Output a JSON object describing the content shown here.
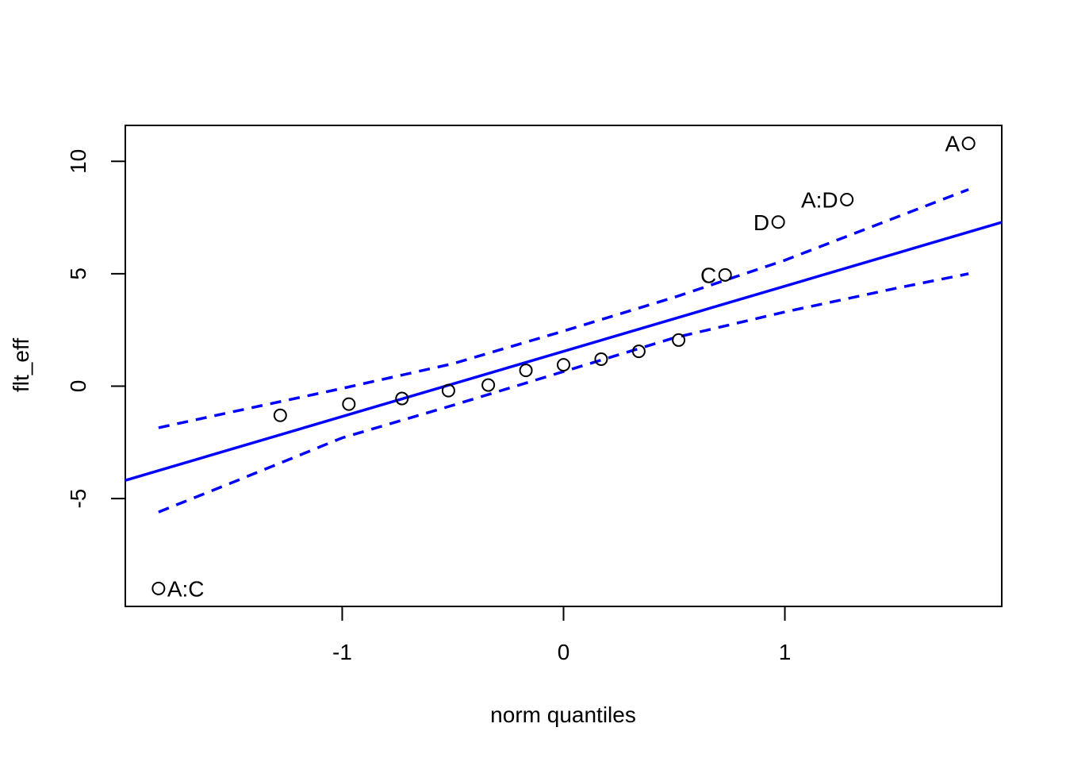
{
  "chart_data": {
    "type": "scatter",
    "title": "",
    "xlabel": "norm quantiles",
    "ylabel": "flt_eff",
    "xlim": [
      -1.98,
      1.98
    ],
    "ylim": [
      -9.8,
      11.6
    ],
    "x_ticks": [
      -1,
      0,
      1
    ],
    "x_tick_labels": [
      "-1",
      "0",
      "1"
    ],
    "y_ticks": [
      -5,
      0,
      5,
      10
    ],
    "y_tick_labels": [
      "-5",
      "0",
      "5",
      "10"
    ],
    "grid": false,
    "colors": {
      "points": "#000000",
      "reference": "#0000ff",
      "axes": "#000000"
    },
    "points": [
      {
        "x": -1.83,
        "y": -9.0,
        "label": "A:C"
      },
      {
        "x": -1.28,
        "y": -1.3,
        "label": ""
      },
      {
        "x": -0.97,
        "y": -0.8,
        "label": ""
      },
      {
        "x": -0.73,
        "y": -0.55,
        "label": ""
      },
      {
        "x": -0.52,
        "y": -0.2,
        "label": ""
      },
      {
        "x": -0.34,
        "y": 0.05,
        "label": ""
      },
      {
        "x": -0.17,
        "y": 0.7,
        "label": ""
      },
      {
        "x": 0.0,
        "y": 0.95,
        "label": ""
      },
      {
        "x": 0.17,
        "y": 1.2,
        "label": ""
      },
      {
        "x": 0.34,
        "y": 1.55,
        "label": ""
      },
      {
        "x": 0.52,
        "y": 2.05,
        "label": ""
      },
      {
        "x": 0.73,
        "y": 4.95,
        "label": "C"
      },
      {
        "x": 0.97,
        "y": 7.3,
        "label": "D"
      },
      {
        "x": 1.28,
        "y": 8.3,
        "label": "A:D"
      },
      {
        "x": 1.83,
        "y": 10.8,
        "label": "A"
      }
    ],
    "reference_line": {
      "intercept": 1.55,
      "slope": 2.9
    },
    "confidence_band": {
      "x": [
        -1.83,
        -1.5,
        -1.0,
        -0.5,
        0.0,
        0.5,
        1.0,
        1.5,
        1.83
      ],
      "upper": [
        -1.85,
        -1.15,
        -0.1,
        1.0,
        2.45,
        3.95,
        5.6,
        7.5,
        8.75
      ],
      "lower": [
        -5.6,
        -4.3,
        -2.3,
        -0.85,
        0.65,
        2.15,
        3.3,
        4.35,
        5.0
      ]
    }
  }
}
